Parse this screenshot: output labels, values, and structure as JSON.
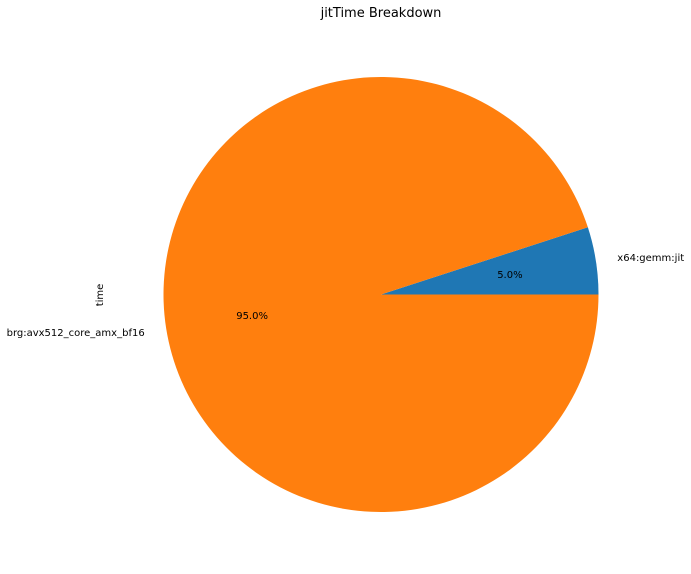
{
  "chart_data": {
    "type": "pie",
    "title": "jitTime Breakdown",
    "ylabel": "time",
    "slices": [
      {
        "label": "x64:gemm:jit",
        "value": 5.0,
        "pct_label": "5.0%",
        "color": "#1f77b4"
      },
      {
        "label": "brg:avx512_core_amx_bf16",
        "value": 95.0,
        "pct_label": "95.0%",
        "color": "#ff7f0e"
      }
    ]
  }
}
